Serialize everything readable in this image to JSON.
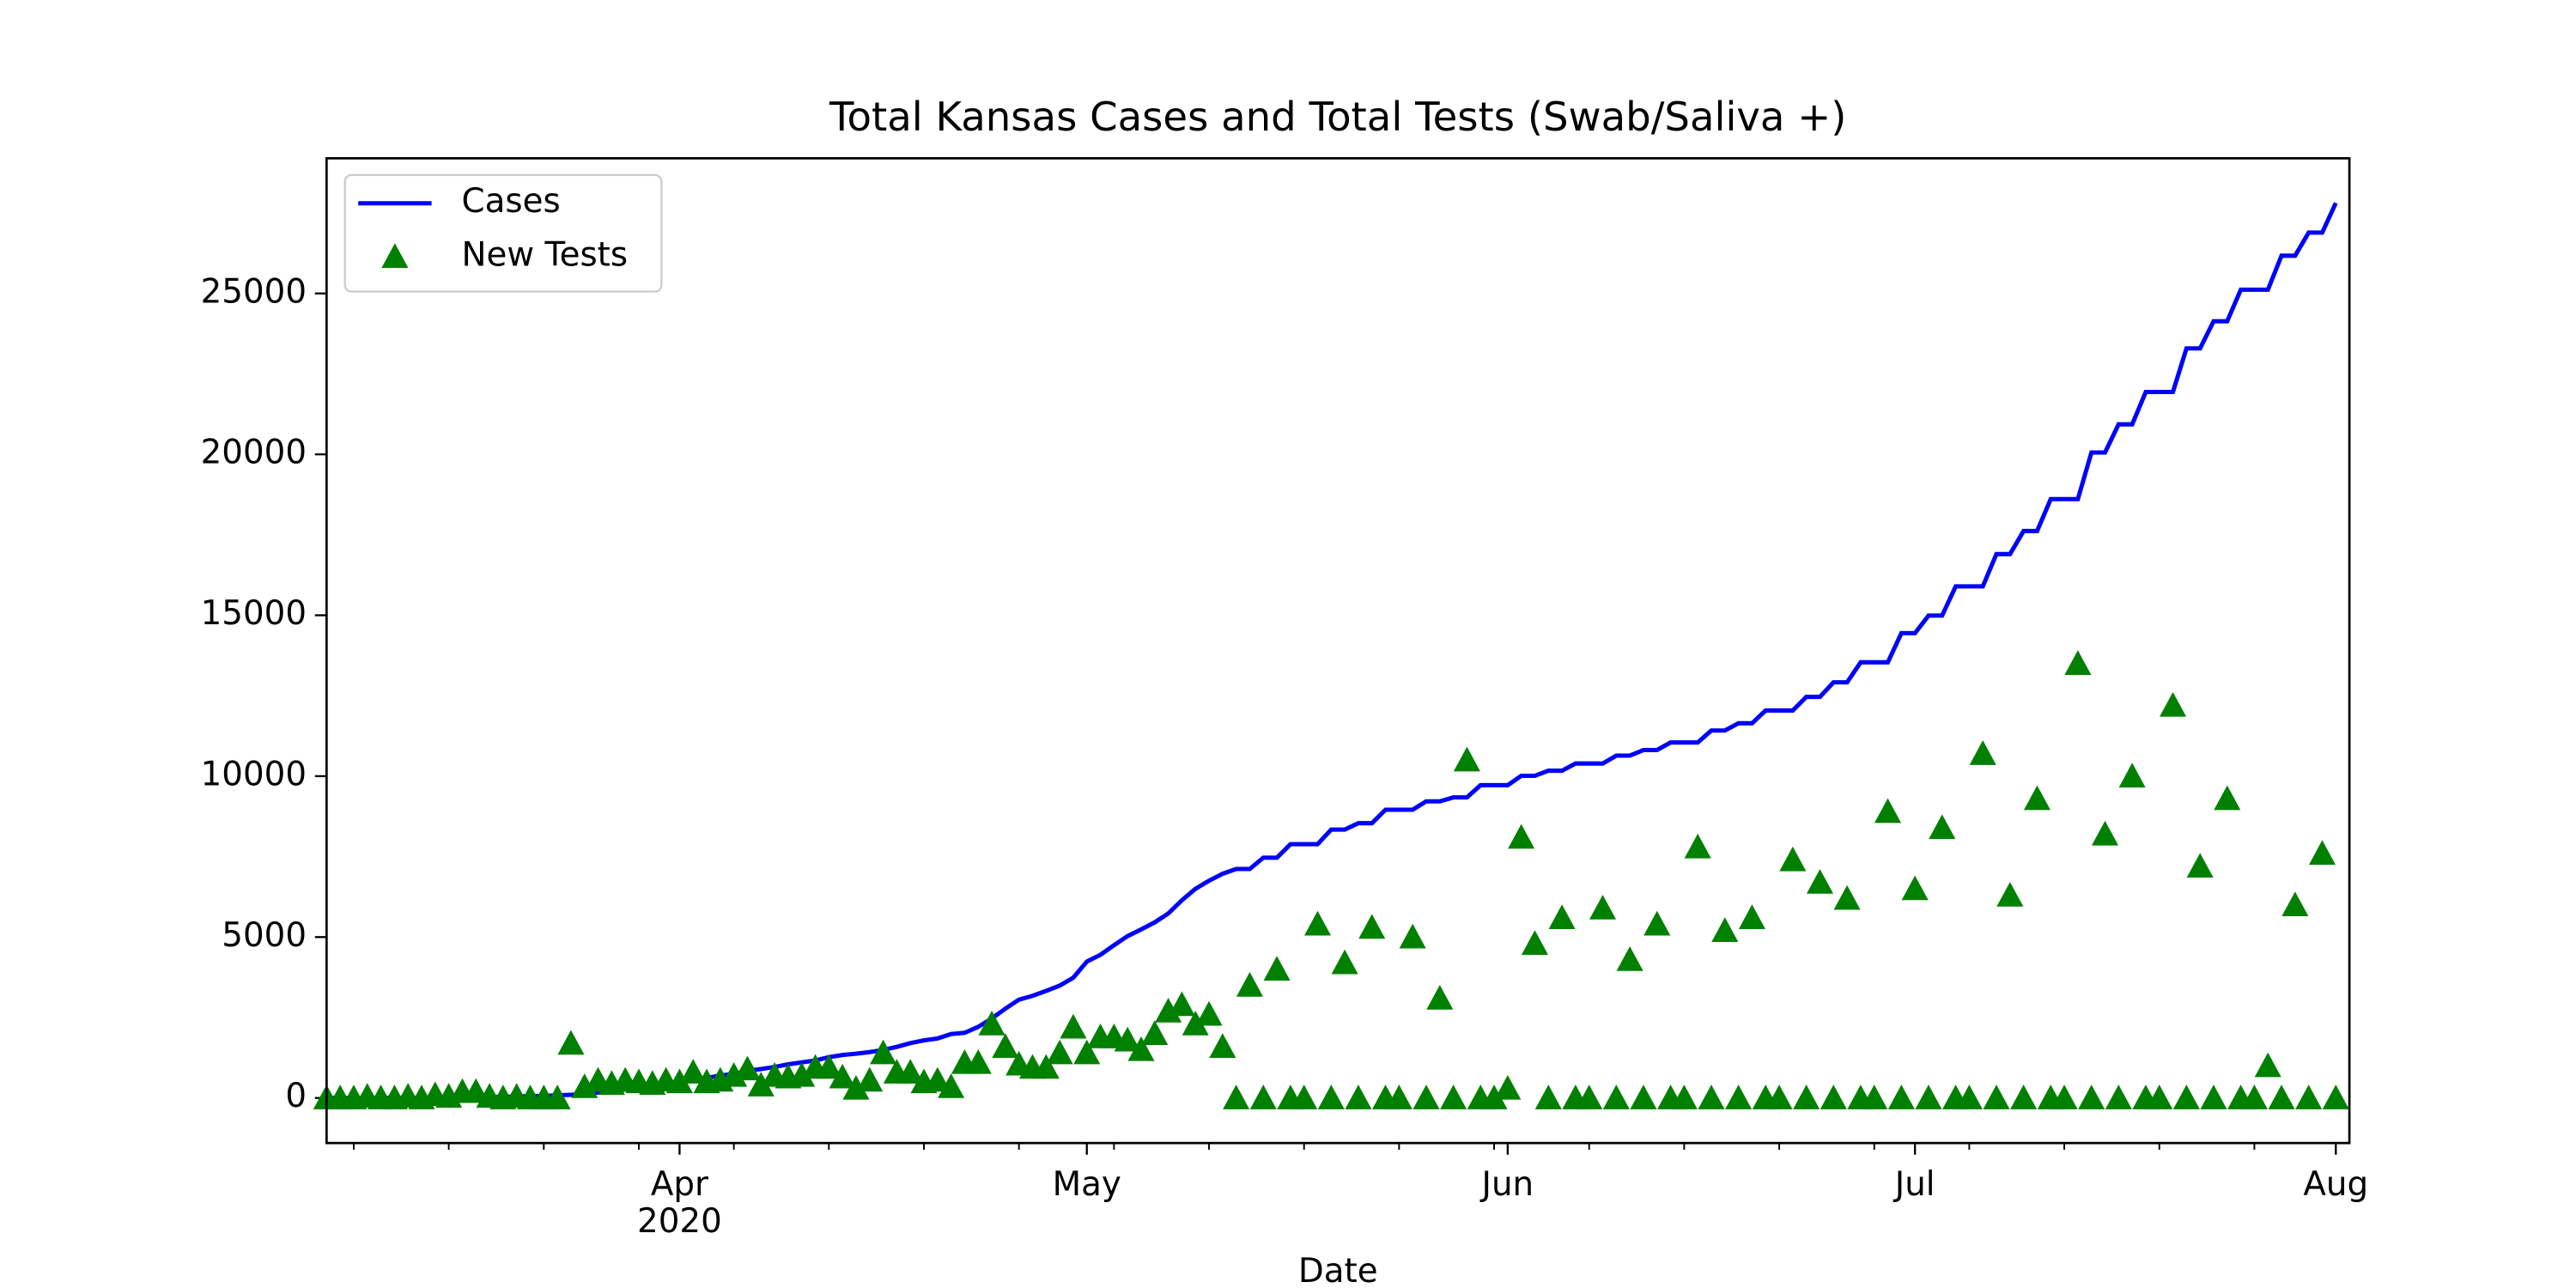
{
  "chart_data": {
    "type": "line",
    "title": "Total Kansas Cases and Total Tests (Swab/Saliva +)",
    "x_label": "Date",
    "x_year_label": "2020",
    "legend": "upper left",
    "xlim": [
      "2020-03-06",
      "2020-08-02"
    ],
    "xticks": [
      {
        "value": "2020-04-01",
        "label": "Apr"
      },
      {
        "value": "2020-05-01",
        "label": "May"
      },
      {
        "value": "2020-06-01",
        "label": "Jun"
      },
      {
        "value": "2020-07-01",
        "label": "Jul"
      },
      {
        "value": "2020-08-01",
        "label": "Aug"
      }
    ],
    "xminorticks": [
      "2020-03-08",
      "2020-03-15",
      "2020-03-22",
      "2020-03-29",
      "2020-04-05",
      "2020-04-12",
      "2020-04-19",
      "2020-04-26",
      "2020-05-03",
      "2020-05-10",
      "2020-05-17",
      "2020-05-24",
      "2020-05-31",
      "2020-06-07",
      "2020-06-14",
      "2020-06-21",
      "2020-06-28",
      "2020-07-05",
      "2020-07-12",
      "2020-07-19",
      "2020-07-26"
    ],
    "ylim": [
      -1400,
      29200
    ],
    "yticks": [
      0,
      5000,
      10000,
      15000,
      20000,
      25000
    ],
    "x": [
      "2020-03-06",
      "2020-03-07",
      "2020-03-08",
      "2020-03-09",
      "2020-03-10",
      "2020-03-11",
      "2020-03-12",
      "2020-03-13",
      "2020-03-14",
      "2020-03-15",
      "2020-03-16",
      "2020-03-17",
      "2020-03-18",
      "2020-03-19",
      "2020-03-20",
      "2020-03-21",
      "2020-03-22",
      "2020-03-23",
      "2020-03-24",
      "2020-03-25",
      "2020-03-26",
      "2020-03-27",
      "2020-03-28",
      "2020-03-29",
      "2020-03-30",
      "2020-03-31",
      "2020-04-01",
      "2020-04-02",
      "2020-04-03",
      "2020-04-04",
      "2020-04-05",
      "2020-04-06",
      "2020-04-07",
      "2020-04-08",
      "2020-04-09",
      "2020-04-10",
      "2020-04-11",
      "2020-04-12",
      "2020-04-13",
      "2020-04-14",
      "2020-04-15",
      "2020-04-16",
      "2020-04-17",
      "2020-04-18",
      "2020-04-19",
      "2020-04-20",
      "2020-04-21",
      "2020-04-22",
      "2020-04-23",
      "2020-04-24",
      "2020-04-25",
      "2020-04-26",
      "2020-04-27",
      "2020-04-28",
      "2020-04-29",
      "2020-04-30",
      "2020-05-01",
      "2020-05-02",
      "2020-05-03",
      "2020-05-04",
      "2020-05-05",
      "2020-05-06",
      "2020-05-07",
      "2020-05-08",
      "2020-05-09",
      "2020-05-10",
      "2020-05-11",
      "2020-05-12",
      "2020-05-13",
      "2020-05-14",
      "2020-05-15",
      "2020-05-16",
      "2020-05-17",
      "2020-05-18",
      "2020-05-19",
      "2020-05-20",
      "2020-05-21",
      "2020-05-22",
      "2020-05-23",
      "2020-05-24",
      "2020-05-25",
      "2020-05-26",
      "2020-05-27",
      "2020-05-28",
      "2020-05-29",
      "2020-05-30",
      "2020-05-31",
      "2020-06-01",
      "2020-06-02",
      "2020-06-03",
      "2020-06-04",
      "2020-06-05",
      "2020-06-06",
      "2020-06-07",
      "2020-06-08",
      "2020-06-09",
      "2020-06-10",
      "2020-06-11",
      "2020-06-12",
      "2020-06-13",
      "2020-06-14",
      "2020-06-15",
      "2020-06-16",
      "2020-06-17",
      "2020-06-18",
      "2020-06-19",
      "2020-06-20",
      "2020-06-21",
      "2020-06-22",
      "2020-06-23",
      "2020-06-24",
      "2020-06-25",
      "2020-06-26",
      "2020-06-27",
      "2020-06-28",
      "2020-06-29",
      "2020-06-30",
      "2020-07-01",
      "2020-07-02",
      "2020-07-03",
      "2020-07-04",
      "2020-07-05",
      "2020-07-06",
      "2020-07-07",
      "2020-07-08",
      "2020-07-09",
      "2020-07-10",
      "2020-07-11",
      "2020-07-12",
      "2020-07-13",
      "2020-07-14",
      "2020-07-15",
      "2020-07-16",
      "2020-07-17",
      "2020-07-18",
      "2020-07-19",
      "2020-07-20",
      "2020-07-21",
      "2020-07-22",
      "2020-07-23",
      "2020-07-24",
      "2020-07-25",
      "2020-07-26",
      "2020-07-27",
      "2020-07-28",
      "2020-07-29",
      "2020-07-30",
      "2020-07-31",
      "2020-08-01"
    ],
    "series": [
      {
        "name": "Cases",
        "type": "line",
        "color": "#0000ff",
        "values": [
          1,
          1,
          1,
          2,
          2,
          4,
          5,
          6,
          8,
          11,
          11,
          17,
          21,
          34,
          44,
          55,
          64,
          82,
          98,
          126,
          168,
          202,
          261,
          319,
          368,
          428,
          482,
          552,
          620,
          698,
          747,
          845,
          900,
          964,
          1046,
          1106,
          1166,
          1268,
          1337,
          1376,
          1426,
          1494,
          1588,
          1705,
          1790,
          1849,
          1986,
          2025,
          2211,
          2468,
          2777,
          3056,
          3174,
          3328,
          3491,
          3738,
          4238,
          4449,
          4746,
          5030,
          5238,
          5458,
          5734,
          6144,
          6501,
          6751,
          6967,
          7116,
          7116,
          7467,
          7467,
          7886,
          7886,
          7886,
          8340,
          8340,
          8539,
          8539,
          8958,
          8958,
          8958,
          9218,
          9218,
          9340,
          9340,
          9719,
          9719,
          9719,
          10011,
          10011,
          10170,
          10170,
          10393,
          10393,
          10393,
          10638,
          10638,
          10812,
          10812,
          11047,
          11047,
          11047,
          11419,
          11419,
          11644,
          11644,
          12041,
          12041,
          12041,
          12465,
          12465,
          12917,
          12917,
          13538,
          13538,
          13538,
          14443,
          14443,
          14990,
          14990,
          15898,
          15898,
          15898,
          16901,
          16901,
          17618,
          17618,
          18610,
          18610,
          18610,
          20058,
          20058,
          20933,
          20933,
          21938,
          21938,
          21938,
          23292,
          23292,
          24136,
          24136,
          25116,
          25116,
          25116,
          26172,
          26172,
          26891,
          26891,
          27812
        ]
      },
      {
        "name": "New Tests",
        "type": "scatter",
        "marker": "triangle",
        "color": "#008000",
        "values": [
          0,
          0,
          0,
          50,
          0,
          0,
          50,
          0,
          100,
          50,
          200,
          200,
          50,
          0,
          50,
          0,
          0,
          0,
          1700,
          350,
          550,
          450,
          550,
          500,
          450,
          550,
          500,
          800,
          500,
          550,
          700,
          900,
          400,
          700,
          650,
          700,
          950,
          950,
          650,
          300,
          550,
          1400,
          800,
          800,
          500,
          550,
          350,
          1100,
          1100,
          2300,
          1600,
          1050,
          950,
          950,
          1400,
          2200,
          1400,
          1900,
          1900,
          1800,
          1500,
          2000,
          2700,
          2900,
          2300,
          2600,
          1600,
          0,
          3500,
          0,
          4000,
          0,
          0,
          5400,
          0,
          4200,
          0,
          5300,
          0,
          0,
          5000,
          0,
          3100,
          0,
          10500,
          0,
          0,
          300,
          8100,
          4800,
          0,
          5600,
          0,
          0,
          5900,
          0,
          4300,
          0,
          5400,
          0,
          0,
          7800,
          0,
          5200,
          0,
          5600,
          0,
          0,
          7400,
          0,
          6700,
          0,
          6200,
          0,
          0,
          8900,
          0,
          6500,
          0,
          8400,
          0,
          0,
          10700,
          0,
          6300,
          0,
          9300,
          0,
          0,
          13500,
          0,
          8200,
          0,
          10000,
          0,
          0,
          12200,
          0,
          7200,
          0,
          9300,
          0,
          0,
          1000,
          0,
          6000,
          0,
          7600,
          0
        ]
      }
    ]
  }
}
